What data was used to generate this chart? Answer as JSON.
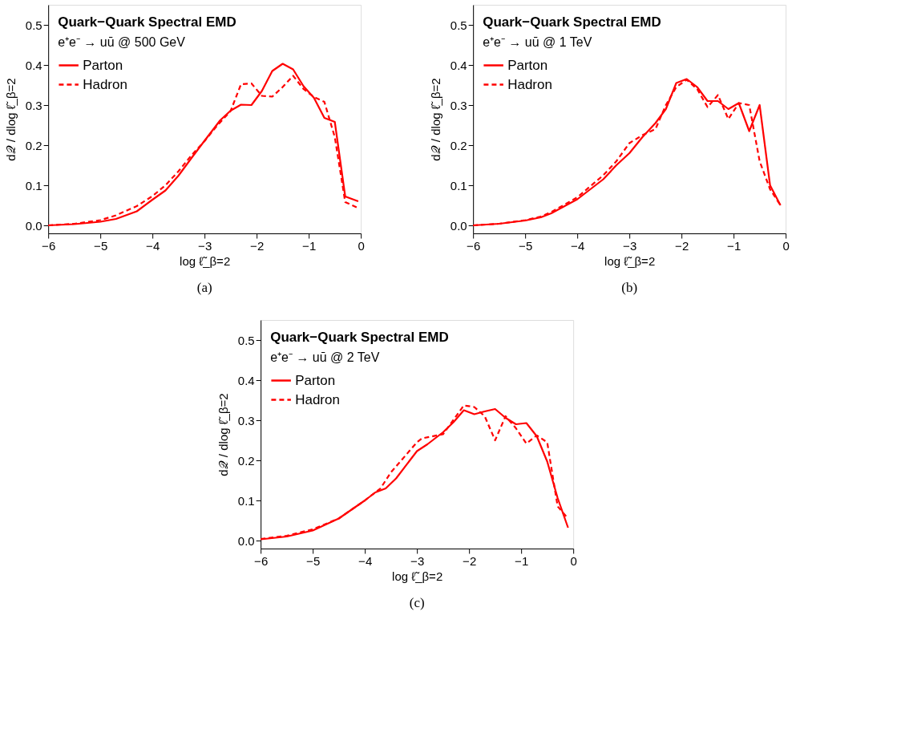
{
  "chart_data": [
    {
      "type": "line",
      "title": "Quark−Quark Spectral EMD",
      "subtitle": "e⁺e⁻ → uū @ 500 GeV",
      "xlabel": "log ℓ̃_β=2",
      "ylabel": "d𝒬 / dlog ℓ̃_β=2",
      "xlim": [
        -6,
        0
      ],
      "ylim": [
        -0.02,
        0.55
      ],
      "xticks": [
        -6,
        -5,
        -4,
        -3,
        -2,
        -1,
        0
      ],
      "yticks": [
        {
          "value": 0,
          "label": "0.0"
        },
        {
          "value": 0.1,
          "label": "0.1"
        },
        {
          "value": 0.2,
          "label": "0.2"
        },
        {
          "value": 0.3,
          "label": "0.3"
        },
        {
          "value": 0.4,
          "label": "0.4"
        },
        {
          "value": 0.5,
          "label": "0.5"
        }
      ],
      "legend": "top left",
      "grid": false,
      "annotations": [
        "(a)"
      ],
      "series": [
        {
          "name": "Parton",
          "color": "#ff0000",
          "line_style": "solid",
          "x": [
            -6,
            -5.5,
            -5,
            -4.7,
            -4.3,
            -4,
            -3.75,
            -3.5,
            -3.25,
            -3,
            -2.7,
            -2.5,
            -2.3,
            -2.1,
            -1.9,
            -1.7,
            -1.5,
            -1.3,
            -1.1,
            -0.9,
            -0.7,
            -0.5,
            -0.3,
            -0.05
          ],
          "values": [
            0,
            0.003,
            0.009,
            0.016,
            0.035,
            0.064,
            0.087,
            0.124,
            0.168,
            0.211,
            0.262,
            0.286,
            0.301,
            0.3,
            0.335,
            0.385,
            0.403,
            0.389,
            0.347,
            0.318,
            0.268,
            0.258,
            0.072,
            0.06
          ]
        },
        {
          "name": "Hadron",
          "color": "#ff0000",
          "line_style": "dashed",
          "x": [
            -6,
            -5.5,
            -5,
            -4.7,
            -4.3,
            -4,
            -3.75,
            -3.5,
            -3.25,
            -3,
            -2.75,
            -2.5,
            -2.3,
            -2.1,
            -1.9,
            -1.7,
            -1.5,
            -1.3,
            -1.1,
            -0.9,
            -0.7,
            -0.5,
            -0.3,
            -0.05
          ],
          "values": [
            0,
            0.004,
            0.013,
            0.025,
            0.048,
            0.073,
            0.1,
            0.135,
            0.175,
            0.21,
            0.25,
            0.285,
            0.352,
            0.354,
            0.323,
            0.321,
            0.345,
            0.373,
            0.34,
            0.32,
            0.308,
            0.22,
            0.058,
            0.043
          ]
        }
      ]
    },
    {
      "type": "line",
      "title": "Quark−Quark Spectral EMD",
      "subtitle": "e⁺e⁻ → uū @ 1 TeV",
      "xlabel": "log ℓ̃_β=2",
      "ylabel": "d𝒬 / dlog ℓ̃_β=2",
      "xlim": [
        -6,
        0
      ],
      "ylim": [
        -0.02,
        0.55
      ],
      "xticks": [
        -6,
        -5,
        -4,
        -3,
        -2,
        -1,
        0
      ],
      "yticks": [
        {
          "value": 0,
          "label": "0.0"
        },
        {
          "value": 0.1,
          "label": "0.1"
        },
        {
          "value": 0.2,
          "label": "0.2"
        },
        {
          "value": 0.3,
          "label": "0.3"
        },
        {
          "value": 0.4,
          "label": "0.4"
        },
        {
          "value": 0.5,
          "label": "0.5"
        }
      ],
      "legend": "top left",
      "grid": false,
      "annotations": [
        "(b)"
      ],
      "series": [
        {
          "name": "Parton",
          "color": "#ff0000",
          "line_style": "solid",
          "x": [
            -6,
            -5.5,
            -5,
            -4.7,
            -4.5,
            -4,
            -3.5,
            -3.25,
            -3,
            -2.75,
            -2.5,
            -2.3,
            -2.1,
            -1.9,
            -1.7,
            -1.5,
            -1.3,
            -1.1,
            -0.9,
            -0.7,
            -0.5,
            -0.3,
            -0.1
          ],
          "values": [
            0,
            0.004,
            0.012,
            0.02,
            0.03,
            0.065,
            0.115,
            0.15,
            0.18,
            0.22,
            0.255,
            0.29,
            0.355,
            0.365,
            0.345,
            0.31,
            0.31,
            0.29,
            0.305,
            0.235,
            0.3,
            0.1,
            0.05
          ]
        },
        {
          "name": "Hadron",
          "color": "#ff0000",
          "line_style": "dashed",
          "x": [
            -6,
            -5.5,
            -5,
            -4.7,
            -4.5,
            -4,
            -3.5,
            -3.25,
            -3,
            -2.75,
            -2.5,
            -2.3,
            -2.1,
            -1.9,
            -1.7,
            -1.5,
            -1.3,
            -1.1,
            -0.9,
            -0.7,
            -0.5,
            -0.3,
            -0.1
          ],
          "values": [
            0,
            0.004,
            0.013,
            0.022,
            0.033,
            0.07,
            0.125,
            0.16,
            0.205,
            0.225,
            0.24,
            0.3,
            0.345,
            0.363,
            0.34,
            0.295,
            0.325,
            0.265,
            0.305,
            0.3,
            0.16,
            0.09,
            0.05
          ]
        }
      ]
    },
    {
      "type": "line",
      "title": "Quark−Quark Spectral EMD",
      "subtitle": "e⁺e⁻ → uū @ 2 TeV",
      "xlabel": "log ℓ̃_β=2",
      "ylabel": "d𝒬 / dlog ℓ̃_β=2",
      "xlim": [
        -6,
        0
      ],
      "ylim": [
        -0.02,
        0.55
      ],
      "xticks": [
        -6,
        -5,
        -4,
        -3,
        -2,
        -1,
        0
      ],
      "yticks": [
        {
          "value": 0,
          "label": "0.0"
        },
        {
          "value": 0.1,
          "label": "0.1"
        },
        {
          "value": 0.2,
          "label": "0.2"
        },
        {
          "value": 0.3,
          "label": "0.3"
        },
        {
          "value": 0.4,
          "label": "0.4"
        },
        {
          "value": 0.5,
          "label": "0.5"
        }
      ],
      "legend": "top left",
      "grid": false,
      "annotations": [
        "(c)"
      ],
      "series": [
        {
          "name": "Parton",
          "color": "#ff0000",
          "line_style": "solid",
          "x": [
            -6,
            -5.5,
            -5,
            -4.5,
            -4,
            -3.8,
            -3.6,
            -3.4,
            -3,
            -2.8,
            -2.5,
            -2.3,
            -2.1,
            -1.9,
            -1.7,
            -1.5,
            -1.3,
            -1.1,
            -0.9,
            -0.7,
            -0.5,
            -0.3,
            -0.1
          ],
          "values": [
            0.003,
            0.01,
            0.025,
            0.055,
            0.1,
            0.12,
            0.13,
            0.155,
            0.223,
            0.24,
            0.27,
            0.295,
            0.325,
            0.315,
            0.322,
            0.328,
            0.306,
            0.29,
            0.293,
            0.26,
            0.197,
            0.106,
            0.032
          ]
        },
        {
          "name": "Hadron",
          "color": "#ff0000",
          "line_style": "dashed",
          "x": [
            -6,
            -5.5,
            -5,
            -4.5,
            -4,
            -3.7,
            -3.5,
            -3,
            -2.9,
            -2.5,
            -2.1,
            -1.9,
            -1.7,
            -1.5,
            -1.3,
            -1.1,
            -0.9,
            -0.7,
            -0.5,
            -0.3,
            -0.1
          ],
          "values": [
            0.004,
            0.012,
            0.028,
            0.055,
            0.1,
            0.13,
            0.17,
            0.245,
            0.255,
            0.265,
            0.337,
            0.333,
            0.31,
            0.25,
            0.31,
            0.28,
            0.242,
            0.262,
            0.245,
            0.085,
            0.055
          ]
        }
      ]
    }
  ]
}
